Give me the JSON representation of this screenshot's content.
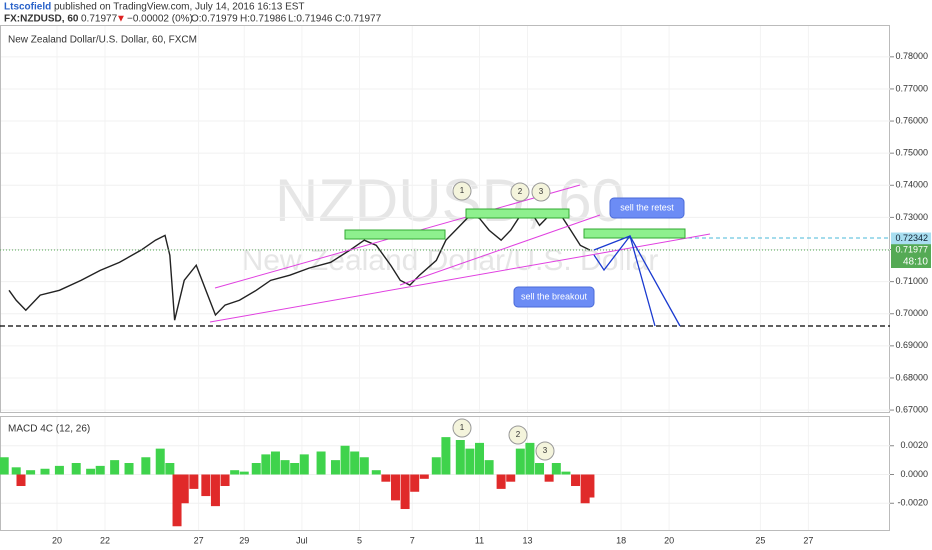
{
  "header": {
    "author": "Ltscofield",
    "published": "published on TradingView.com, July 14, 2016 16:13 EST",
    "symbol": "FX:NZDUSD, 60",
    "last": "0.71977",
    "arrow": "▼",
    "change": "−0.00002 (0%)",
    "open": "O:0.71979",
    "high": "H:0.71986",
    "low": "L:0.71946",
    "close": "C:0.71977"
  },
  "watermark": {
    "symbol": "NZDUSD, 60",
    "name": "New Zealand Dollar/U.S. Dollar"
  },
  "annotations": {
    "retest": "sell the retest",
    "breakout": "sell the breakout",
    "price_marks": [
      "1",
      "2",
      "3"
    ],
    "macd_marks": [
      "1",
      "2",
      "3"
    ],
    "countdown": "48:10"
  },
  "chart_data": [
    {
      "type": "line",
      "title": "New Zealand Dollar/U.S. Dollar, 60, FXCM",
      "color": "#222222",
      "grid": true,
      "x": [
        0,
        0.3,
        0.7,
        1.3,
        2.1,
        3.0,
        3.8,
        4.6,
        5.5,
        6.1,
        6.5,
        6.7,
        6.9,
        7.3,
        7.8,
        8.2,
        8.6,
        9.0,
        9.6,
        10.3,
        10.9,
        11.7,
        12.5,
        13.4,
        14.2,
        14.8,
        15.3,
        15.9,
        16.3,
        16.7,
        17.1,
        17.8,
        18.2,
        18.8,
        19.2,
        19.6,
        20.0,
        20.5,
        20.9,
        21.3,
        21.7,
        22.1,
        22.5,
        23.0,
        23.4,
        23.8,
        24.2
      ],
      "values": [
        0.7073,
        0.7042,
        0.7011,
        0.7058,
        0.7073,
        0.7104,
        0.7135,
        0.716,
        0.7198,
        0.7229,
        0.7244,
        0.7182,
        0.698,
        0.7104,
        0.7151,
        0.7073,
        0.6996,
        0.7027,
        0.7042,
        0.7073,
        0.7104,
        0.712,
        0.7142,
        0.716,
        0.7198,
        0.7229,
        0.7213,
        0.7151,
        0.7104,
        0.7089,
        0.712,
        0.7166,
        0.7229,
        0.7275,
        0.7306,
        0.7297,
        0.726,
        0.7229,
        0.726,
        0.7306,
        0.7322,
        0.7275,
        0.7306,
        0.7306,
        0.726,
        0.7213,
        0.7198
      ],
      "xlim": [
        0,
        36.7
      ],
      "xticks": [
        {
          "value": 2,
          "label": "20"
        },
        {
          "value": 4,
          "label": "22"
        },
        {
          "value": 7.9,
          "label": "27"
        },
        {
          "value": 9.8,
          "label": "29"
        },
        {
          "value": 12.2,
          "label": "Jul"
        },
        {
          "value": 14.6,
          "label": "5"
        },
        {
          "value": 16.8,
          "label": "7"
        },
        {
          "value": 19.6,
          "label": "11"
        },
        {
          "value": 21.6,
          "label": "13"
        },
        {
          "value": 25.5,
          "label": "18"
        },
        {
          "value": 27.5,
          "label": "20"
        },
        {
          "value": 31.3,
          "label": "25"
        },
        {
          "value": 33.3,
          "label": "27"
        }
      ],
      "ylim": [
        0.6694,
        0.7896
      ],
      "yticks": [
        {
          "value": 0.67,
          "label": "0.67000"
        },
        {
          "value": 0.68,
          "label": "0.68000"
        },
        {
          "value": 0.69,
          "label": "0.69000"
        },
        {
          "value": 0.7,
          "label": "0.70000"
        },
        {
          "value": 0.71,
          "label": "0.71000"
        },
        {
          "value": 0.72,
          "label": "0.72000"
        },
        {
          "value": 0.73,
          "label": "0.73000"
        },
        {
          "value": 0.74,
          "label": "0.74000"
        },
        {
          "value": 0.75,
          "label": "0.75000"
        },
        {
          "value": 0.76,
          "label": "0.76000"
        },
        {
          "value": 0.77,
          "label": "0.77000"
        },
        {
          "value": 0.78,
          "label": "0.78000"
        }
      ],
      "price_labels": [
        0.72342,
        0.71977
      ]
    },
    {
      "type": "bar",
      "title": "MACD 4C (12, 26)",
      "colors": {
        "positive": "#3fd34c",
        "negative": "#e02a2a"
      },
      "x": [
        -0.2,
        0.3,
        0.5,
        0.9,
        1.5,
        2.1,
        2.8,
        3.4,
        3.8,
        4.4,
        5.0,
        5.7,
        6.3,
        6.7,
        7.0,
        7.3,
        7.7,
        8.2,
        8.6,
        9.0,
        9.4,
        9.8,
        10.3,
        10.7,
        11.1,
        11.5,
        11.9,
        12.3,
        13.0,
        13.6,
        14.0,
        14.4,
        14.8,
        15.3,
        15.7,
        16.1,
        16.5,
        16.9,
        17.3,
        17.8,
        18.2,
        18.8,
        19.2,
        19.6,
        20.0,
        20.5,
        20.9,
        21.3,
        21.7,
        22.1,
        22.5,
        22.8,
        23.2,
        23.6,
        24.0,
        24.2
      ],
      "values": [
        0.0012,
        0.0005,
        -0.0008,
        0.0003,
        0.0004,
        0.0006,
        0.0008,
        0.0004,
        0.0006,
        0.001,
        0.0008,
        0.0012,
        0.0018,
        0.0008,
        -0.0036,
        -0.002,
        -0.001,
        -0.0015,
        -0.0022,
        -0.0008,
        0.0003,
        0.0002,
        0.0008,
        0.0014,
        0.0016,
        0.001,
        0.0008,
        0.0014,
        0.0016,
        0.001,
        0.002,
        0.0016,
        0.0012,
        0.0003,
        -0.0005,
        -0.0018,
        -0.0024,
        -0.0012,
        -0.0003,
        0.0012,
        0.0026,
        0.0024,
        0.0018,
        0.0022,
        0.001,
        -0.001,
        -0.0005,
        0.0018,
        0.0022,
        0.0008,
        -0.0005,
        0.0008,
        0.0002,
        -0.0008,
        -0.002,
        -0.0016
      ],
      "xlim": [
        0,
        36.7
      ],
      "ylim": [
        -0.00386,
        0.004
      ],
      "yticks": [
        {
          "value": 0.002,
          "label": "0.0020"
        },
        {
          "value": 0,
          "label": "0.0000"
        },
        {
          "value": -0.002,
          "label": "-0.0020"
        }
      ]
    }
  ]
}
